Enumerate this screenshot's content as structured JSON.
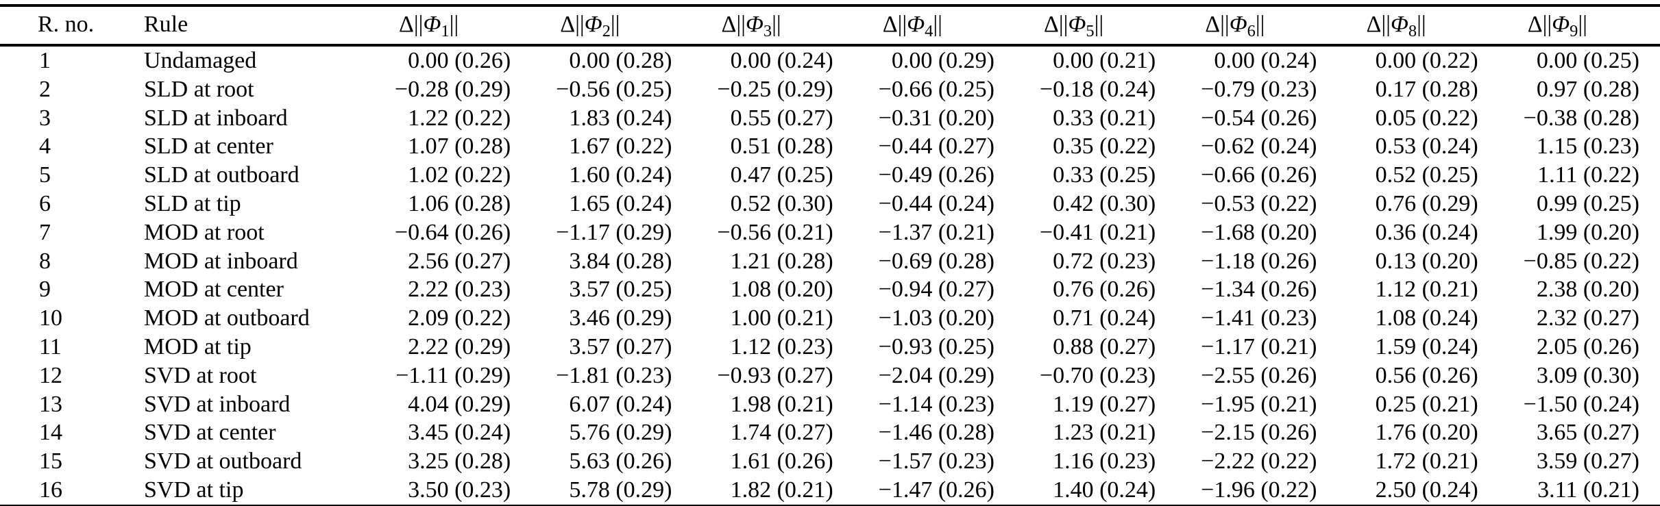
{
  "page": {
    "background": "#ffffff",
    "text_color": "#000000"
  },
  "table": {
    "columns": [
      {
        "key": "r-no",
        "type": "text",
        "label": "R. no."
      },
      {
        "key": "rule",
        "type": "text",
        "label": "Rule"
      },
      {
        "key": "phi-1",
        "type": "norm",
        "prefix": "Δ||",
        "symbol": "Φ",
        "subscript": "1",
        "suffix": "||"
      },
      {
        "key": "phi-2",
        "type": "norm",
        "prefix": "Δ||",
        "symbol": "Φ",
        "subscript": "2",
        "suffix": "||"
      },
      {
        "key": "phi-3",
        "type": "norm",
        "prefix": "Δ||",
        "symbol": "Φ",
        "subscript": "3",
        "suffix": "||"
      },
      {
        "key": "phi-4",
        "type": "norm",
        "prefix": "Δ||",
        "symbol": "Φ",
        "subscript": "4",
        "suffix": "||"
      },
      {
        "key": "phi-5",
        "type": "norm",
        "prefix": "Δ||",
        "symbol": "Φ",
        "subscript": "5",
        "suffix": "||"
      },
      {
        "key": "phi-6",
        "type": "norm",
        "prefix": "Δ||",
        "symbol": "Φ",
        "subscript": "6",
        "suffix": "||"
      },
      {
        "key": "phi-8",
        "type": "norm",
        "prefix": "Δ||",
        "symbol": "Φ",
        "subscript": "8",
        "suffix": "||"
      },
      {
        "key": "phi-9",
        "type": "norm",
        "prefix": "Δ||",
        "symbol": "Φ",
        "subscript": "9",
        "suffix": "||"
      }
    ],
    "rows": [
      {
        "r_no": "1",
        "rule": "Undamaged",
        "values": [
          "0.00 (0.26)",
          "0.00 (0.28)",
          "0.00 (0.24)",
          "0.00 (0.29)",
          "0.00 (0.21)",
          "0.00 (0.24)",
          "0.00 (0.22)",
          "0.00 (0.25)"
        ]
      },
      {
        "r_no": "2",
        "rule": "SLD at root",
        "values": [
          "−0.28 (0.29)",
          "−0.56 (0.25)",
          "−0.25 (0.29)",
          "−0.66 (0.25)",
          "−0.18 (0.24)",
          "−0.79 (0.23)",
          "0.17 (0.28)",
          "0.97 (0.28)"
        ]
      },
      {
        "r_no": "3",
        "rule": "SLD at inboard",
        "values": [
          "1.22 (0.22)",
          "1.83 (0.24)",
          "0.55 (0.27)",
          "−0.31 (0.20)",
          "0.33 (0.21)",
          "−0.54 (0.26)",
          "0.05 (0.22)",
          "−0.38 (0.28)"
        ]
      },
      {
        "r_no": "4",
        "rule": "SLD at center",
        "values": [
          "1.07 (0.28)",
          "1.67 (0.22)",
          "0.51 (0.28)",
          "−0.44 (0.27)",
          "0.35 (0.22)",
          "−0.62 (0.24)",
          "0.53 (0.24)",
          "1.15 (0.23)"
        ]
      },
      {
        "r_no": "5",
        "rule": "SLD at outboard",
        "values": [
          "1.02 (0.22)",
          "1.60 (0.24)",
          "0.47 (0.25)",
          "−0.49 (0.26)",
          "0.33 (0.25)",
          "−0.66 (0.26)",
          "0.52 (0.25)",
          "1.11 (0.22)"
        ]
      },
      {
        "r_no": "6",
        "rule": "SLD at tip",
        "values": [
          "1.06 (0.28)",
          "1.65 (0.24)",
          "0.52 (0.30)",
          "−0.44 (0.24)",
          "0.42 (0.30)",
          "−0.53 (0.22)",
          "0.76 (0.29)",
          "0.99 (0.25)"
        ]
      },
      {
        "r_no": "7",
        "rule": "MOD at root",
        "values": [
          "−0.64 (0.26)",
          "−1.17 (0.29)",
          "−0.56 (0.21)",
          "−1.37 (0.21)",
          "−0.41 (0.21)",
          "−1.68 (0.20)",
          "0.36 (0.24)",
          "1.99 (0.20)"
        ]
      },
      {
        "r_no": "8",
        "rule": "MOD at inboard",
        "values": [
          "2.56 (0.27)",
          "3.84 (0.28)",
          "1.21 (0.28)",
          "−0.69 (0.28)",
          "0.72 (0.23)",
          "−1.18 (0.26)",
          "0.13 (0.20)",
          "−0.85 (0.22)"
        ]
      },
      {
        "r_no": "9",
        "rule": "MOD at center",
        "values": [
          "2.22 (0.23)",
          "3.57 (0.25)",
          "1.08 (0.20)",
          "−0.94 (0.27)",
          "0.76 (0.26)",
          "−1.34 (0.26)",
          "1.12 (0.21)",
          "2.38 (0.20)"
        ]
      },
      {
        "r_no": "10",
        "rule": "MOD at outboard",
        "values": [
          "2.09 (0.22)",
          "3.46 (0.29)",
          "1.00 (0.21)",
          "−1.03 (0.20)",
          "0.71 (0.24)",
          "−1.41 (0.23)",
          "1.08 (0.24)",
          "2.32 (0.27)"
        ]
      },
      {
        "r_no": "11",
        "rule": "MOD at tip",
        "values": [
          "2.22 (0.29)",
          "3.57 (0.27)",
          "1.12 (0.23)",
          "−0.93 (0.25)",
          "0.88 (0.27)",
          "−1.17 (0.21)",
          "1.59 (0.24)",
          "2.05 (0.26)"
        ]
      },
      {
        "r_no": "12",
        "rule": "SVD at root",
        "values": [
          "−1.11 (0.29)",
          "−1.81 (0.23)",
          "−0.93 (0.27)",
          "−2.04 (0.29)",
          "−0.70 (0.23)",
          "−2.55 (0.26)",
          "0.56 (0.26)",
          "3.09 (0.30)"
        ]
      },
      {
        "r_no": "13",
        "rule": "SVD at inboard",
        "values": [
          "4.04 (0.29)",
          "6.07 (0.24)",
          "1.98 (0.21)",
          "−1.14 (0.23)",
          "1.19 (0.27)",
          "−1.95 (0.21)",
          "0.25 (0.21)",
          "−1.50 (0.24)"
        ]
      },
      {
        "r_no": "14",
        "rule": "SVD at center",
        "values": [
          "3.45 (0.24)",
          "5.76 (0.29)",
          "1.74 (0.27)",
          "−1.46 (0.28)",
          "1.23 (0.21)",
          "−2.15 (0.26)",
          "1.76 (0.20)",
          "3.65 (0.27)"
        ]
      },
      {
        "r_no": "15",
        "rule": "SVD at outboard",
        "values": [
          "3.25 (0.28)",
          "5.63 (0.26)",
          "1.61 (0.26)",
          "−1.57 (0.23)",
          "1.16 (0.23)",
          "−2.22 (0.22)",
          "1.72 (0.21)",
          "3.59 (0.27)"
        ]
      },
      {
        "r_no": "16",
        "rule": "SVD at tip",
        "values": [
          "3.50 (0.23)",
          "5.78 (0.29)",
          "1.82 (0.21)",
          "−1.47 (0.26)",
          "1.40 (0.24)",
          "−1.96 (0.22)",
          "2.50 (0.24)",
          "3.11 (0.21)"
        ]
      }
    ]
  }
}
